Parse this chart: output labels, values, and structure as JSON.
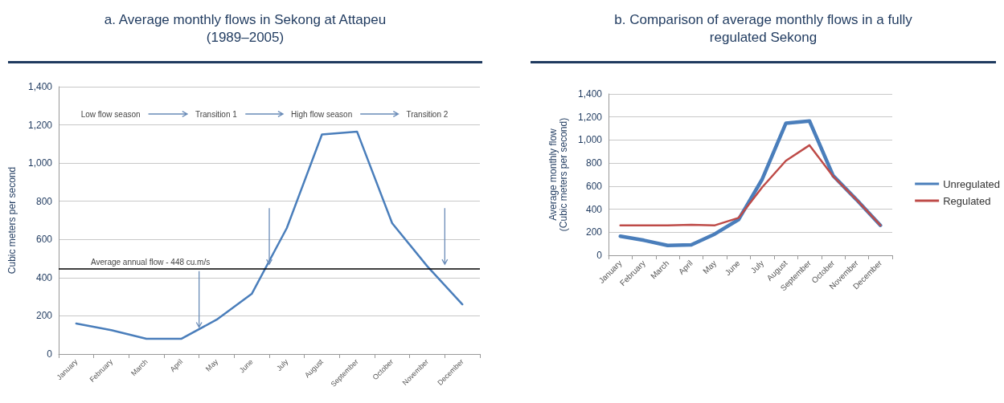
{
  "chart_data": [
    {
      "type": "line",
      "title": "a. Average monthly flows in Sekong at Attapeu (1989–2005)",
      "ylabel": "Cubic meters per second",
      "categories": [
        "January",
        "February",
        "March",
        "April",
        "May",
        "June",
        "July",
        "August",
        "September",
        "October",
        "November",
        "December"
      ],
      "series": [
        {
          "color": "#4a7ebb",
          "values": [
            160,
            125,
            80,
            80,
            180,
            315,
            660,
            1150,
            1165,
            685,
            460,
            260
          ]
        }
      ],
      "ylim": [
        0,
        1400
      ],
      "yticks": [
        0,
        200,
        400,
        600,
        800,
        {
          "value": 1000,
          "label": "1,000"
        },
        {
          "value": 1200,
          "label": "1,200"
        },
        {
          "value": 1400,
          "label": "1,400"
        }
      ],
      "grid": "y",
      "legend": false,
      "marker": "none",
      "line_style": "solid",
      "ref_lines": [
        {
          "axis": "y",
          "value": 448,
          "label": "Average annual flow - 448 cu.m/s",
          "color": "#000000"
        }
      ],
      "annotations": [
        "Low flow season",
        "Transition 1",
        "High flow season",
        "Transition 2"
      ]
    },
    {
      "type": "line",
      "title": "b. Comparison of average monthly flows in a fully regulated Sekong",
      "ylabel": "Average monthly flow\n(Cubic meters per second)",
      "categories": [
        "January",
        "February",
        "March",
        "April",
        "May",
        "June",
        "July",
        "August",
        "September",
        "October",
        "November",
        "December"
      ],
      "series": [
        {
          "name": "Unregulated",
          "color": "#4a7ebb",
          "values": [
            165,
            130,
            85,
            90,
            185,
            310,
            660,
            1145,
            1165,
            690,
            480,
            260
          ]
        },
        {
          "name": "Regulated",
          "color": "#be4b48",
          "values": [
            260,
            260,
            260,
            265,
            260,
            325,
            590,
            820,
            955,
            685,
            480,
            260
          ]
        }
      ],
      "ylim": [
        0,
        1400
      ],
      "yticks": [
        0,
        200,
        400,
        600,
        800,
        {
          "value": 1000,
          "label": "1,000"
        },
        {
          "value": 1200,
          "label": "1,200"
        },
        {
          "value": 1400,
          "label": "1,400"
        }
      ],
      "grid": "y",
      "legend": "right",
      "marker": "none",
      "line_style": "solid"
    }
  ]
}
